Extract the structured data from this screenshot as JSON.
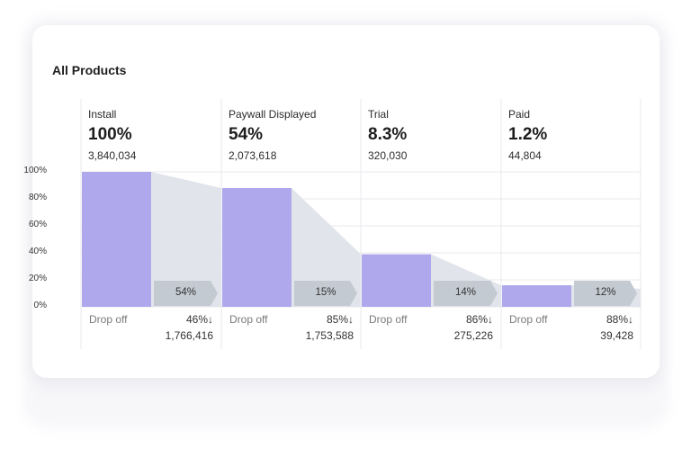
{
  "card": {
    "title": "All Products"
  },
  "chart_data": {
    "type": "bar",
    "title": "All Products",
    "subtitle": "",
    "xlabel": "",
    "ylabel": "",
    "ylim": [
      0,
      100
    ],
    "yticks": [
      "100%",
      "80%",
      "60%",
      "40%",
      "20%",
      "0%"
    ],
    "grid": true,
    "legend": "none",
    "categories": [
      "Install",
      "Paywall Displayed",
      "Trial",
      "Paid"
    ],
    "steps": [
      {
        "name": "Install",
        "percent_label": "100%",
        "count": "3,840,034",
        "bar_level": 100,
        "conversion_label": "54%",
        "drop_label": "Drop off",
        "drop_pct": "46%",
        "drop_count": "1,766,416"
      },
      {
        "name": "Paywall Displayed",
        "percent_label": "54%",
        "count": "2,073,618",
        "bar_level": 88,
        "conversion_label": "15%",
        "drop_label": "Drop off",
        "drop_pct": "85%",
        "drop_count": "1,753,588"
      },
      {
        "name": "Trial",
        "percent_label": "8.3%",
        "count": "320,030",
        "bar_level": 39,
        "conversion_label": "14%",
        "drop_label": "Drop off",
        "drop_pct": "86%",
        "drop_count": "275,226"
      },
      {
        "name": "Paid",
        "percent_label": "1.2%",
        "count": "44,804",
        "bar_level": 16,
        "conversion_label": "12%",
        "drop_label": "Drop off",
        "drop_pct": "88%",
        "drop_count": "39,428"
      }
    ],
    "values": [
      100,
      88,
      39,
      16
    ],
    "drop_arrow_icon": "↓",
    "colors": {
      "bar": "#b0a8ed",
      "dropoff_area": "#e1e5eb",
      "conversion_tag": "#c3cad2",
      "grid": "#e8e8ec"
    }
  }
}
